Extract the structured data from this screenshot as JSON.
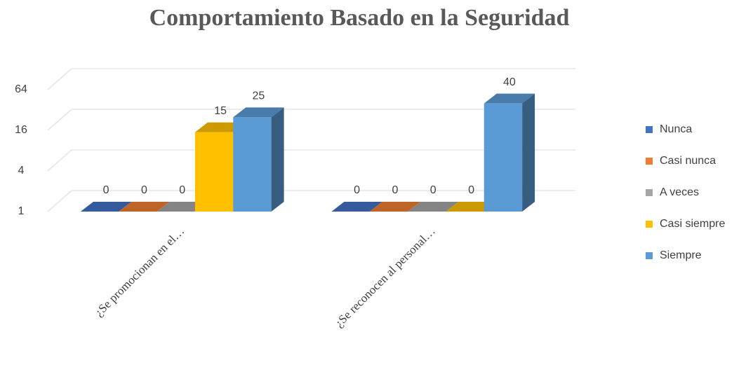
{
  "chart_data": {
    "type": "bar3d",
    "title": "Comportamiento  Basado en la Seguridad",
    "categories": [
      "¿Se promocionan en el…",
      "¿Se reconocen al personal…"
    ],
    "series": [
      {
        "name": "Nunca",
        "color": "#4472c4",
        "values": [
          0,
          0
        ]
      },
      {
        "name": "Casi nunca",
        "color": "#ed7d31",
        "values": [
          0,
          0
        ]
      },
      {
        "name": "A veces",
        "color": "#a5a5a5",
        "values": [
          0,
          0
        ]
      },
      {
        "name": "Casi siempre",
        "color": "#ffc000",
        "values": [
          15,
          0
        ]
      },
      {
        "name": "Siempre",
        "color": "#5b9bd5",
        "values": [
          25,
          40
        ]
      }
    ],
    "ylim": [
      1,
      64
    ],
    "yticks": [
      1,
      4,
      16,
      64
    ],
    "log_scale": true,
    "grid": true,
    "legend": "right"
  }
}
